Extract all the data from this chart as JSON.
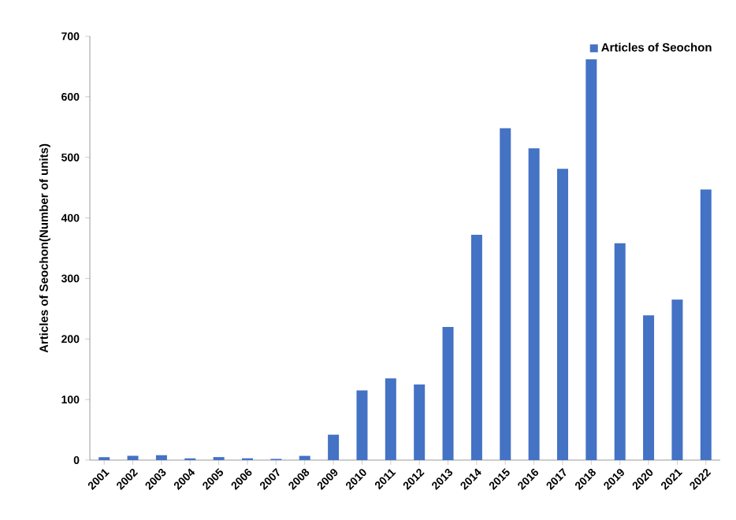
{
  "chart_data": {
    "type": "bar",
    "ylabel": "Articles of Seochon(Number of units)",
    "categories": [
      "2001",
      "2002",
      "2003",
      "2004",
      "2005",
      "2006",
      "2007",
      "2008",
      "2009",
      "2010",
      "2011",
      "2012",
      "2013",
      "2014",
      "2015",
      "2016",
      "2017",
      "2018",
      "2019",
      "2020",
      "2021",
      "2022"
    ],
    "series": [
      {
        "name": "Articles of Seochon",
        "color": "#4472c4",
        "values": [
          5,
          7,
          8,
          3,
          5,
          3,
          2,
          7,
          42,
          115,
          135,
          125,
          220,
          372,
          548,
          515,
          481,
          662,
          358,
          239,
          265,
          447
        ]
      }
    ],
    "ylim": [
      0,
      700
    ],
    "yticks": [
      0,
      100,
      200,
      300,
      400,
      500,
      600,
      700
    ],
    "grid": false,
    "legend": "top right"
  }
}
